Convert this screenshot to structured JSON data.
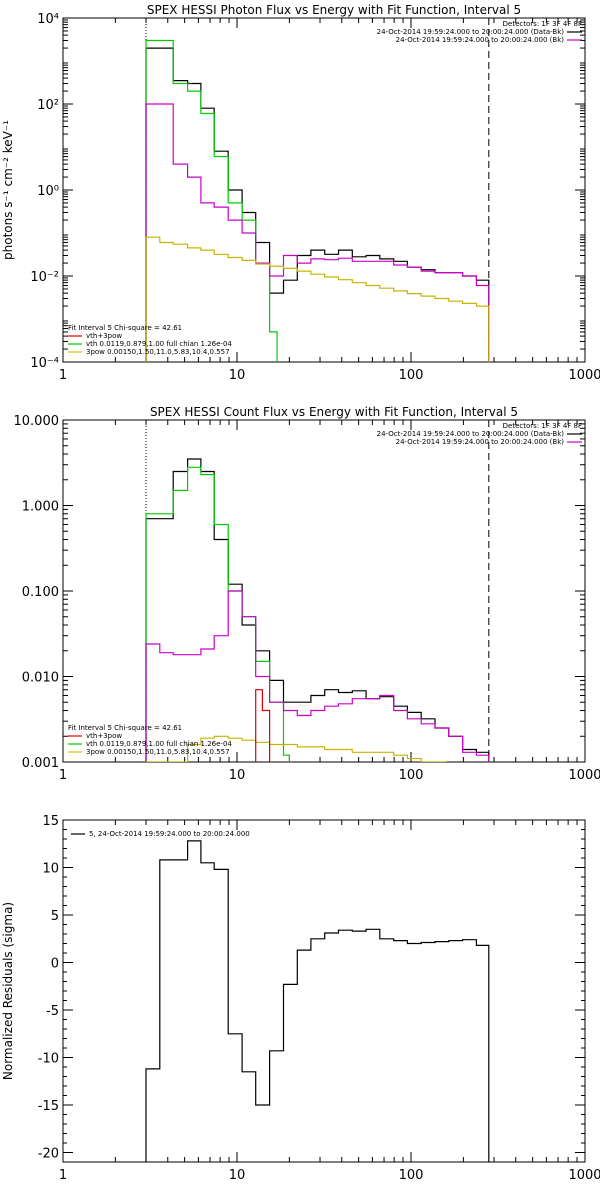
{
  "chart_data": [
    {
      "type": "line",
      "title": "SPEX HESSI Photon Flux vs Energy with Fit Function, Interval 5",
      "ylabel": "photons s⁻¹ cm⁻² keV⁻¹",
      "xlabel": "",
      "xscale": "log",
      "yscale": "log",
      "xlim": [
        1,
        1000
      ],
      "ylim": [
        0.0001,
        10000
      ],
      "xticks": [
        1,
        10,
        100,
        1000
      ],
      "xtick_labels": [
        "1",
        "10",
        "100",
        "1000"
      ],
      "yticks": [
        0.0001,
        0.01,
        1,
        100,
        10000
      ],
      "ytick_labels": [
        "10⁻⁴",
        "10⁻²",
        "10⁰",
        "10²",
        "10⁴"
      ],
      "vlines": [
        {
          "x": 3,
          "style": "dotted"
        },
        {
          "x": 280,
          "style": "dashed"
        }
      ],
      "legend_topright": {
        "header": "Detectors: 1F 3F 4F 8F",
        "entries": [
          {
            "text": "24-Oct-2014 19:59:24.000 to 20:00:24.000 (Data-Bk)",
            "color": "#000000"
          },
          {
            "text": "24-Oct-2014 19:59:24.000 to 20:00:24.000 (Bk)",
            "color": "#cc00cc"
          }
        ]
      },
      "legend_bottomleft": {
        "header": "Fit Interval 5   Chi-square = 42.61",
        "entries": [
          {
            "text": "vth+3pow",
            "color": "#dd0000"
          },
          {
            "text": "vth 0.0119,0.879,1.00  full chian 1.26e-04",
            "color": "#00cc00"
          },
          {
            "text": "3pow 0.00150,1.50,11.0,5.83,10.4,0.557",
            "color": "#cccc00"
          }
        ]
      },
      "series": [
        {
          "color": "#000000",
          "edges": [
            3,
            3.6,
            4.3,
            5.2,
            6.2,
            7.4,
            8.9,
            10.7,
            12.8,
            15.4,
            18.5,
            22.2,
            26.6,
            31.9,
            38.3,
            46,
            55.2,
            66.2,
            79.5,
            95.4,
            114.5,
            137.4,
            164.9,
            197.9,
            237.5,
            280
          ],
          "values": [
            2000,
            2000,
            350,
            300,
            80,
            8,
            1,
            0.3,
            0.06,
            0.004,
            0.008,
            0.03,
            0.04,
            0.032,
            0.04,
            0.028,
            0.03,
            0.025,
            0.022,
            0.016,
            0.014,
            0.012,
            0.012,
            0.01,
            0.008
          ]
        },
        {
          "color": "#00cc00",
          "edges": [
            3,
            3.6,
            4.3,
            5.2,
            6.2,
            7.4,
            8.9,
            10.7,
            12.8,
            15.4,
            17
          ],
          "values": [
            3000,
            3000,
            300,
            200,
            60,
            6,
            0.5,
            0.2,
            0.02,
            0.0005
          ]
        },
        {
          "color": "#cc00cc",
          "edges": [
            3,
            3.6,
            4.3,
            5.2,
            6.2,
            7.4,
            8.9,
            10.7,
            12.8,
            15.4,
            18.5,
            22.2,
            26.6,
            31.9,
            38.3,
            46,
            55.2,
            66.2,
            79.5,
            95.4,
            114.5,
            137.4,
            164.9,
            197.9,
            237.5,
            280
          ],
          "values": [
            100,
            100,
            4,
            2,
            0.5,
            0.4,
            0.2,
            0.1,
            0.02,
            0.01,
            0.03,
            0.02,
            0.025,
            0.024,
            0.026,
            0.022,
            0.022,
            0.022,
            0.018,
            0.016,
            0.013,
            0.012,
            0.012,
            0.01,
            0.006
          ]
        },
        {
          "color": "#c8b400",
          "edges": [
            3,
            3.6,
            4.3,
            5.2,
            6.2,
            7.4,
            8.9,
            10.7,
            12.8,
            15.4,
            18.5,
            22.2,
            26.6,
            31.9,
            38.3,
            46,
            55.2,
            66.2,
            79.5,
            95.4,
            114.5,
            137.4,
            164.9,
            197.9,
            237.5,
            280
          ],
          "values": [
            0.08,
            0.06,
            0.055,
            0.045,
            0.04,
            0.032,
            0.027,
            0.023,
            0.019,
            0.017,
            0.015,
            0.013,
            0.011,
            0.0095,
            0.0082,
            0.007,
            0.006,
            0.0052,
            0.0045,
            0.0039,
            0.0034,
            0.003,
            0.0026,
            0.0023,
            0.002
          ]
        }
      ]
    },
    {
      "type": "line",
      "title": "SPEX HESSI Count Flux vs Energy with Fit Function, Interval 5",
      "ylabel": "",
      "xlabel": "",
      "xscale": "log",
      "yscale": "log",
      "xlim": [
        1,
        1000
      ],
      "ylim": [
        0.001,
        10
      ],
      "xticks": [
        1,
        10,
        100,
        1000
      ],
      "xtick_labels": [
        "1",
        "10",
        "100",
        "1000"
      ],
      "yticks": [
        0.001,
        0.01,
        0.1,
        1,
        10
      ],
      "ytick_labels": [
        "0.001",
        "0.010",
        "0.100",
        "1.000",
        "10.000"
      ],
      "vlines": [
        {
          "x": 3,
          "style": "dotted"
        },
        {
          "x": 280,
          "style": "dashed"
        }
      ],
      "legend_topright": {
        "header": "Detectors: 1F 3F 4F 8F",
        "entries": [
          {
            "text": "24-Oct-2014 19:59:24.000 to 20:00:24.000 (Data-Bk)",
            "color": "#000000"
          },
          {
            "text": "24-Oct-2014 19:59:24.000 to 20:00:24.000 (Bk)",
            "color": "#cc00cc"
          }
        ]
      },
      "legend_bottomleft": {
        "header": "Fit Interval 5   Chi-square = 42.61",
        "entries": [
          {
            "text": "vth+3pow",
            "color": "#dd0000"
          },
          {
            "text": "vth 0.0119,0.879,1.00  full chian 1.26e-04",
            "color": "#00cc00"
          },
          {
            "text": "3pow 0.00150,1.50,11.0,5.83,10.4,0.557",
            "color": "#cccc00"
          }
        ]
      },
      "series": [
        {
          "color": "#000000",
          "edges": [
            3,
            3.6,
            4.3,
            5.2,
            6.2,
            7.4,
            8.9,
            10.7,
            12.8,
            15.4,
            18.5,
            22.2,
            26.6,
            31.9,
            38.3,
            46,
            55.2,
            66.2,
            79.5,
            95.4,
            114.5,
            137.4,
            164.9,
            197.9,
            237.5,
            280
          ],
          "values": [
            0.7,
            0.7,
            2.5,
            3.5,
            2.5,
            0.4,
            0.12,
            0.04,
            0.02,
            0.009,
            0.005,
            0.005,
            0.006,
            0.007,
            0.0065,
            0.0068,
            0.0055,
            0.0058,
            0.0045,
            0.0038,
            0.0032,
            0.0025,
            0.002,
            0.0014,
            0.0013
          ]
        },
        {
          "color": "#00cc00",
          "edges": [
            3,
            3.6,
            4.3,
            5.2,
            6.2,
            7.4,
            8.9,
            10.7,
            12.8,
            15.4,
            18.5,
            20
          ],
          "values": [
            0.8,
            0.8,
            1.5,
            2.8,
            2.3,
            0.6,
            0.1,
            0.05,
            0.015,
            0.005,
            0.0012
          ]
        },
        {
          "color": "#cc00cc",
          "edges": [
            3,
            3.6,
            4.3,
            5.2,
            6.2,
            7.4,
            8.9,
            10.7,
            12.8,
            15.4,
            18.5,
            22.2,
            26.6,
            31.9,
            38.3,
            46,
            55.2,
            66.2,
            79.5,
            95.4,
            114.5,
            137.4,
            164.9,
            197.9,
            237.5,
            280
          ],
          "values": [
            0.024,
            0.019,
            0.018,
            0.018,
            0.021,
            0.03,
            0.1,
            0.05,
            0.01,
            0.005,
            0.004,
            0.0035,
            0.004,
            0.0045,
            0.0048,
            0.0055,
            0.0055,
            0.006,
            0.004,
            0.0032,
            0.0028,
            0.0025,
            0.002,
            0.0013,
            0.0012
          ]
        },
        {
          "color": "#c8b400",
          "edges": [
            3,
            4.3,
            5.2,
            6.2,
            7.4,
            8.9,
            10.7,
            12.8,
            15.4,
            18.5,
            22.2,
            26.6,
            31.9,
            38.3,
            46,
            55.2,
            66.2,
            79.5,
            95.4,
            114.5,
            137.4,
            160
          ],
          "values": [
            0.0008,
            0.001,
            0.0016,
            0.0019,
            0.002,
            0.0019,
            0.0018,
            0.0017,
            0.0016,
            0.0016,
            0.0015,
            0.0015,
            0.0014,
            0.0014,
            0.0013,
            0.0013,
            0.0013,
            0.0012,
            0.0011,
            0.001,
            0.0009
          ]
        },
        {
          "color": "#dd0000",
          "edges": [
            12.8,
            14,
            15.4
          ],
          "values": [
            0.007,
            0.004
          ]
        }
      ]
    },
    {
      "type": "line",
      "title": "",
      "ylabel": "Normalized Residuals (sigma)",
      "xlabel": "",
      "xscale": "log",
      "yscale": "linear",
      "xlim": [
        1,
        1000
      ],
      "ylim": [
        -21,
        15
      ],
      "xticks": [
        1,
        10,
        100,
        1000
      ],
      "xtick_labels": [
        "1",
        "10",
        "100",
        "1000"
      ],
      "yticks": [
        -20,
        -15,
        -10,
        -5,
        0,
        5,
        10,
        15
      ],
      "ytick_labels": [
        "-20",
        "-15",
        "-10",
        "-5",
        "0",
        "5",
        "10",
        "15"
      ],
      "legend_topleft": {
        "entries": [
          {
            "text": "5, 24-Oct-2014 19:59:24.000 to 20:00:24.000",
            "color": "#000000"
          }
        ]
      },
      "series": [
        {
          "color": "#000000",
          "edges": [
            3,
            3.6,
            4.3,
            5.2,
            6.2,
            7.4,
            8.9,
            10.7,
            12.8,
            15.4,
            18.5,
            22.2,
            26.6,
            31.9,
            38.3,
            46,
            55.2,
            66.2,
            79.5,
            95.4,
            114.5,
            137.4,
            164.9,
            197.9,
            237.5,
            280
          ],
          "values": [
            -11.2,
            10.8,
            10.8,
            12.8,
            10.5,
            9.8,
            -7.5,
            -11.5,
            -15.0,
            -9.3,
            -2.3,
            1.3,
            2.5,
            3.1,
            3.4,
            3.3,
            3.5,
            2.5,
            2.3,
            2.0,
            2.1,
            2.2,
            2.3,
            2.4,
            1.8
          ],
          "start_y": -21,
          "end_y": -21
        }
      ]
    }
  ]
}
